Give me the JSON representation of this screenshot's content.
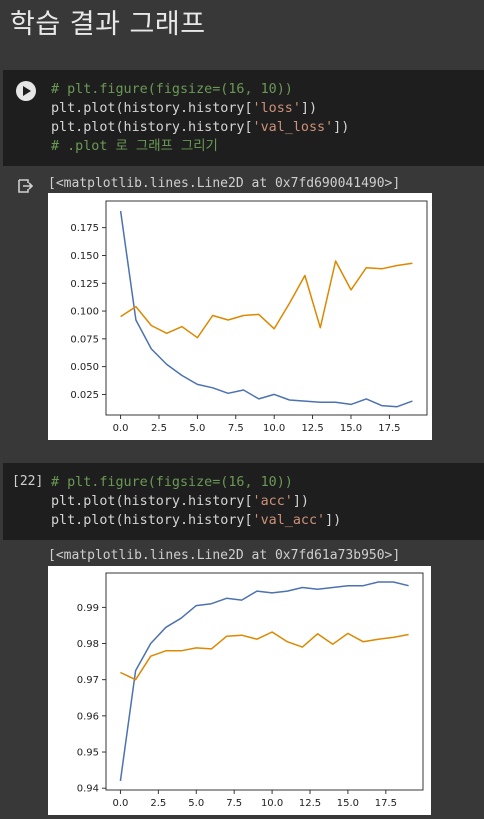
{
  "section_heading": "학습 결과 그래프",
  "cells": [
    {
      "exec_count": "",
      "code": [
        [
          {
            "t": "cm",
            "v": "# plt.figure(figsize=(16, 10))"
          }
        ],
        [
          {
            "t": "tx",
            "v": "plt.plot(history.history["
          },
          {
            "t": "st",
            "v": "'loss'"
          },
          {
            "t": "tx",
            "v": "])"
          }
        ],
        [
          {
            "t": "tx",
            "v": "plt.plot(history.history["
          },
          {
            "t": "st",
            "v": "'val_loss'"
          },
          {
            "t": "tx",
            "v": "])"
          }
        ],
        [
          {
            "t": "cm",
            "v": "# .plot 로 그래프 그리기"
          }
        ]
      ],
      "output_text": "[<matplotlib.lines.Line2D at 0x7fd690041490>]"
    },
    {
      "exec_count": "[22]",
      "code": [
        [
          {
            "t": "cm",
            "v": "# plt.figure(figsize=(16, 10))"
          }
        ],
        [
          {
            "t": "tx",
            "v": "plt.plot(history.history["
          },
          {
            "t": "st",
            "v": "'acc'"
          },
          {
            "t": "tx",
            "v": "])"
          }
        ],
        [
          {
            "t": "tx",
            "v": "plt.plot(history.history["
          },
          {
            "t": "st",
            "v": "'val_acc'"
          },
          {
            "t": "tx",
            "v": "])"
          }
        ]
      ],
      "output_text": "[<matplotlib.lines.Line2D at 0x7fd61a73b950>]"
    }
  ],
  "chart_data": [
    {
      "type": "line",
      "title": "",
      "xlabel": "",
      "ylabel": "",
      "xlim": [
        -0.95,
        19.95
      ],
      "ylim": [
        0.0065,
        0.199
      ],
      "xticks": [
        0.0,
        2.5,
        5.0,
        7.5,
        10.0,
        12.5,
        15.0,
        17.5
      ],
      "xtick_labels": [
        "0.0",
        "2.5",
        "5.0",
        "7.5",
        "10.0",
        "12.5",
        "15.0",
        "17.5"
      ],
      "yticks": [
        0.025,
        0.05,
        0.075,
        0.1,
        0.125,
        0.15,
        0.175
      ],
      "ytick_labels": [
        "0.025",
        "0.050",
        "0.075",
        "0.100",
        "0.125",
        "0.150",
        "0.175"
      ],
      "x": [
        0,
        1,
        2,
        3,
        4,
        5,
        6,
        7,
        8,
        9,
        10,
        11,
        12,
        13,
        14,
        15,
        16,
        17,
        18,
        19
      ],
      "series": [
        {
          "color": "#4c72b0",
          "values": [
            0.19,
            0.092,
            0.066,
            0.052,
            0.042,
            0.034,
            0.031,
            0.026,
            0.029,
            0.021,
            0.025,
            0.02,
            0.019,
            0.018,
            0.018,
            0.016,
            0.021,
            0.015,
            0.014,
            0.019
          ]
        },
        {
          "color": "#dd8800",
          "values": [
            0.095,
            0.104,
            0.087,
            0.08,
            0.086,
            0.076,
            0.096,
            0.092,
            0.096,
            0.097,
            0.084,
            0.107,
            0.132,
            0.085,
            0.145,
            0.119,
            0.139,
            0.138,
            0.141,
            0.143
          ]
        }
      ],
      "grid": false,
      "legend": "none"
    },
    {
      "type": "line",
      "title": "",
      "xlabel": "",
      "ylabel": "",
      "xlim": [
        -0.95,
        19.95
      ],
      "ylim": [
        0.9395,
        0.9995
      ],
      "xticks": [
        0.0,
        2.5,
        5.0,
        7.5,
        10.0,
        12.5,
        15.0,
        17.5
      ],
      "xtick_labels": [
        "0.0",
        "2.5",
        "5.0",
        "7.5",
        "10.0",
        "12.5",
        "15.0",
        "17.5"
      ],
      "yticks": [
        0.94,
        0.95,
        0.96,
        0.97,
        0.98,
        0.99
      ],
      "ytick_labels": [
        "0.94",
        "0.95",
        "0.96",
        "0.97",
        "0.98",
        "0.99"
      ],
      "x": [
        0,
        1,
        2,
        3,
        4,
        5,
        6,
        7,
        8,
        9,
        10,
        11,
        12,
        13,
        14,
        15,
        16,
        17,
        18,
        19
      ],
      "series": [
        {
          "color": "#4c72b0",
          "values": [
            0.942,
            0.9725,
            0.98,
            0.9845,
            0.987,
            0.9905,
            0.991,
            0.9925,
            0.992,
            0.9945,
            0.994,
            0.9945,
            0.9955,
            0.995,
            0.9955,
            0.996,
            0.996,
            0.997,
            0.997,
            0.996
          ]
        },
        {
          "color": "#dd8800",
          "values": [
            0.972,
            0.97,
            0.9765,
            0.978,
            0.978,
            0.9788,
            0.9785,
            0.982,
            0.9823,
            0.9812,
            0.9832,
            0.9805,
            0.979,
            0.9827,
            0.9798,
            0.9828,
            0.9805,
            0.9812,
            0.9817,
            0.9825
          ]
        }
      ],
      "grid": false,
      "legend": "none"
    }
  ]
}
